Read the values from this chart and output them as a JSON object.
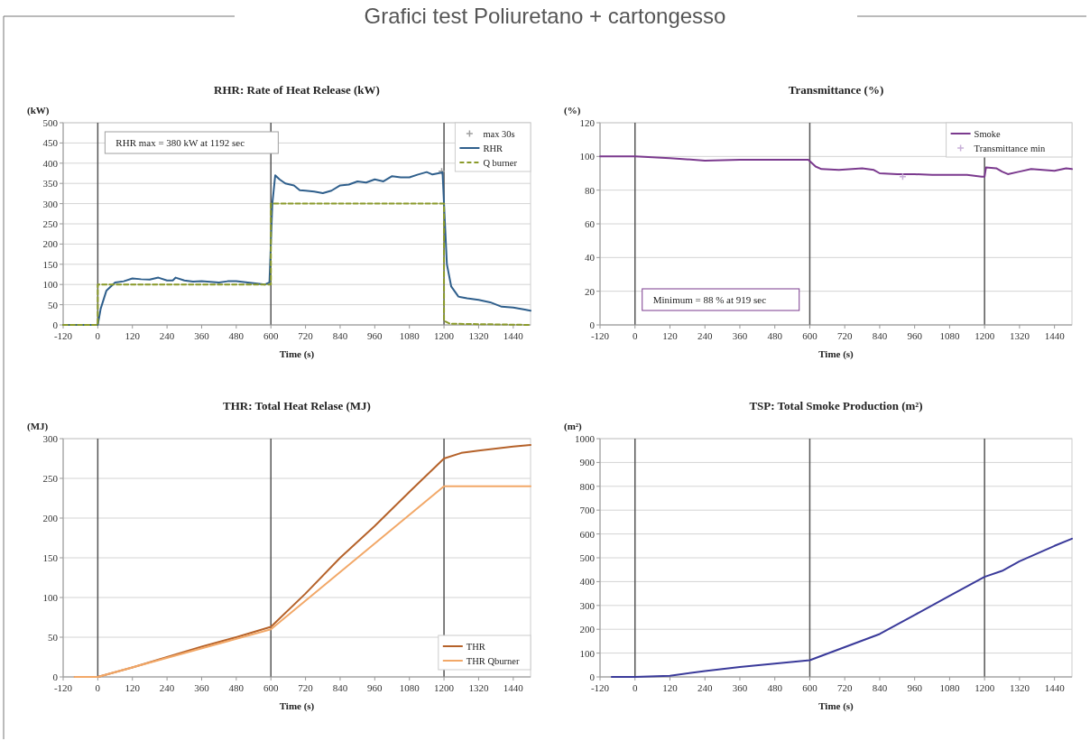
{
  "chart_data": [
    {
      "type": "other",
      "title": "Grafici test Poliuretano + cartongesso"
    },
    {
      "type": "line",
      "title": "RHR: Rate of Heat Release (kW)",
      "xlabel": "Time (s)",
      "ylabel": "(kW)",
      "xlim": [
        -120,
        1500
      ],
      "xticks": [
        -120,
        0,
        120,
        240,
        360,
        480,
        600,
        720,
        840,
        960,
        1080,
        1200,
        1320,
        1440
      ],
      "ylim": [
        0,
        500
      ],
      "yticks": [
        0,
        50,
        100,
        150,
        200,
        250,
        300,
        350,
        400,
        450,
        500
      ],
      "grid": "y",
      "legend": "top right",
      "annotations": [
        "RHR max = 380 kW at 1192 sec"
      ],
      "ref_lines": [
        {
          "axis": "x",
          "value": 0,
          "color": "#555555"
        },
        {
          "axis": "x",
          "value": 600,
          "color": "#555555"
        },
        {
          "axis": "x",
          "value": 1200,
          "color": "#555555"
        }
      ],
      "series": [
        {
          "name": "max 30s",
          "type": "scatter",
          "marker": "cross",
          "color": "#a0a0a0",
          "x": [
            1192
          ],
          "values": [
            380
          ]
        },
        {
          "name": "RHR",
          "color": "#2f5f8c",
          "x": [
            -120,
            0,
            10,
            30,
            60,
            90,
            120,
            150,
            180,
            210,
            240,
            260,
            270,
            300,
            330,
            360,
            420,
            450,
            480,
            540,
            580,
            595,
            605,
            615,
            630,
            650,
            680,
            700,
            720,
            750,
            780,
            810,
            840,
            870,
            900,
            930,
            960,
            990,
            1020,
            1050,
            1080,
            1110,
            1140,
            1160,
            1180,
            1195,
            1200,
            1210,
            1225,
            1250,
            1280,
            1320,
            1360,
            1400,
            1440,
            1480,
            1500
          ],
          "values": [
            0,
            0,
            40,
            85,
            105,
            108,
            115,
            113,
            112,
            117,
            110,
            110,
            117,
            110,
            107,
            108,
            105,
            108,
            108,
            103,
            100,
            105,
            300,
            370,
            360,
            350,
            345,
            333,
            332,
            330,
            326,
            332,
            345,
            347,
            355,
            352,
            360,
            355,
            368,
            365,
            365,
            372,
            378,
            372,
            375,
            377,
            300,
            150,
            95,
            70,
            66,
            62,
            56,
            45,
            43,
            38,
            35
          ]
        },
        {
          "name": "Q burner",
          "color": "#8a9a2a",
          "line_style": "dashed",
          "x": [
            -120,
            0,
            0,
            600,
            600,
            1200,
            1200,
            1220,
            1500
          ],
          "values": [
            0,
            0,
            100,
            100,
            300,
            300,
            10,
            3,
            0
          ]
        }
      ]
    },
    {
      "type": "line",
      "title": "Transmittance (%)",
      "xlabel": "Time (s)",
      "ylabel": "(%)",
      "xlim": [
        -120,
        1500
      ],
      "xticks": [
        -120,
        0,
        120,
        240,
        360,
        480,
        600,
        720,
        840,
        960,
        1080,
        1200,
        1320,
        1440
      ],
      "ylim": [
        0,
        120
      ],
      "yticks": [
        0,
        20,
        40,
        60,
        80,
        100,
        120
      ],
      "grid": "y",
      "legend": "top right",
      "annotations": [
        "Minimum = 88 % at 919 sec"
      ],
      "ref_lines": [
        {
          "axis": "x",
          "value": 0,
          "color": "#555555"
        },
        {
          "axis": "x",
          "value": 600,
          "color": "#555555"
        },
        {
          "axis": "x",
          "value": 1200,
          "color": "#555555"
        }
      ],
      "series": [
        {
          "name": "Smoke",
          "color": "#7b3a8e",
          "x": [
            -120,
            0,
            120,
            240,
            360,
            480,
            595,
            620,
            640,
            700,
            780,
            820,
            840,
            900,
            960,
            1020,
            1080,
            1140,
            1190,
            1200,
            1205,
            1240,
            1260,
            1280,
            1320,
            1360,
            1400,
            1440,
            1480,
            1500
          ],
          "values": [
            100,
            100,
            99,
            97.5,
            98,
            98,
            98,
            94,
            92.5,
            92,
            93,
            92,
            90,
            89.5,
            89.5,
            89,
            89,
            89,
            88,
            88,
            93.5,
            93,
            91,
            89.5,
            91,
            92.5,
            92,
            91.5,
            93,
            92.5
          ]
        },
        {
          "name": "Transmittance min",
          "type": "scatter",
          "marker": "cross",
          "color": "#c8b0d8",
          "x": [
            919
          ],
          "values": [
            88
          ]
        }
      ]
    },
    {
      "type": "line",
      "title": "THR: Total Heat Relase (MJ)",
      "xlabel": "Time (s)",
      "ylabel": "(MJ)",
      "xlim": [
        -120,
        1500
      ],
      "xticks": [
        -120,
        0,
        120,
        240,
        360,
        480,
        600,
        720,
        840,
        960,
        1080,
        1200,
        1320,
        1440
      ],
      "ylim": [
        0,
        300
      ],
      "yticks": [
        0,
        50,
        100,
        150,
        200,
        250,
        300
      ],
      "grid": "y",
      "legend": "bottom right",
      "ref_lines": [
        {
          "axis": "x",
          "value": 0,
          "color": "#555555"
        },
        {
          "axis": "x",
          "value": 600,
          "color": "#555555"
        },
        {
          "axis": "x",
          "value": 1200,
          "color": "#555555"
        }
      ],
      "series": [
        {
          "name": "THR",
          "color": "#b5622a",
          "x": [
            -80,
            0,
            120,
            240,
            360,
            480,
            600,
            720,
            840,
            960,
            1080,
            1200,
            1260,
            1320,
            1440,
            1500
          ],
          "values": [
            0,
            0,
            12,
            25,
            38,
            50,
            63,
            105,
            150,
            190,
            233,
            275,
            282,
            285,
            290,
            292
          ]
        },
        {
          "name": "THR Qburner",
          "color": "#f2a868",
          "x": [
            -80,
            0,
            600,
            1200,
            1500
          ],
          "values": [
            0,
            0,
            60,
            240,
            240
          ]
        }
      ]
    },
    {
      "type": "line",
      "title": "TSP: Total Smoke Production (m²)",
      "xlabel": "Time (s)",
      "ylabel": "(m²)",
      "xlim": [
        -120,
        1500
      ],
      "xticks": [
        -120,
        0,
        120,
        240,
        360,
        480,
        600,
        720,
        840,
        960,
        1080,
        1200,
        1320,
        1440
      ],
      "ylim": [
        0,
        1000
      ],
      "yticks": [
        0,
        100,
        200,
        300,
        400,
        500,
        600,
        700,
        800,
        900,
        1000
      ],
      "grid": "y",
      "ref_lines": [
        {
          "axis": "x",
          "value": 0,
          "color": "#555555"
        },
        {
          "axis": "x",
          "value": 600,
          "color": "#555555"
        },
        {
          "axis": "x",
          "value": 1200,
          "color": "#555555"
        }
      ],
      "series": [
        {
          "color": "#3a3a9a",
          "x": [
            -80,
            0,
            120,
            240,
            360,
            480,
            600,
            720,
            840,
            960,
            1080,
            1200,
            1260,
            1320,
            1440,
            1500
          ],
          "values": [
            0,
            0,
            5,
            25,
            42,
            56,
            70,
            125,
            180,
            260,
            340,
            420,
            445,
            485,
            550,
            580
          ]
        }
      ]
    }
  ]
}
